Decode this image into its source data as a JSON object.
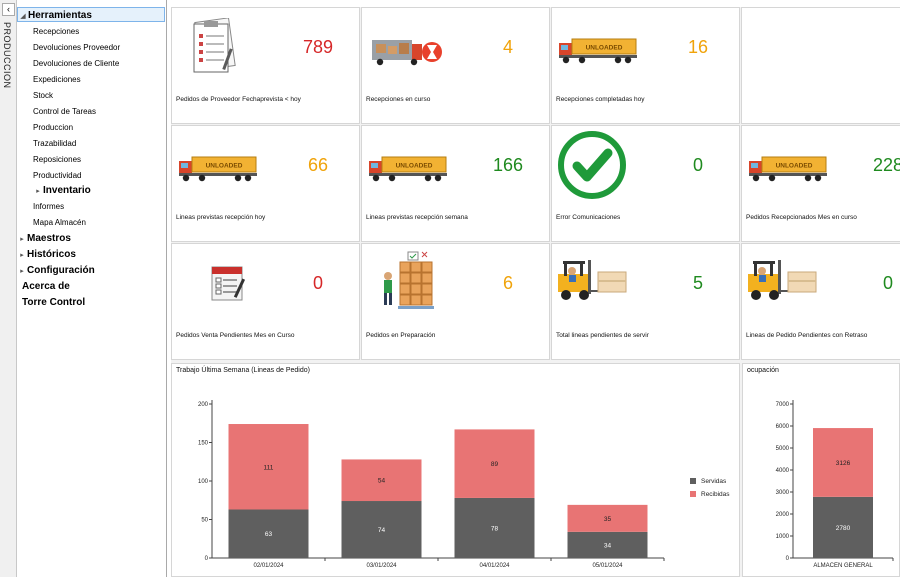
{
  "rail": {
    "collapse": "‹",
    "label": "PRODUCCION"
  },
  "nav": {
    "herramientas": "Herramientas",
    "items": [
      "Recepciones",
      "Devoluciones Proveedor",
      "Devoluciones de Cliente",
      "Expediciones",
      "Stock",
      "Control de Tareas",
      "Produccion",
      "Trazabilidad",
      "Reposiciones",
      "Productividad"
    ],
    "inventario": "Inventario",
    "items2": [
      "Informes",
      "Mapa Almacén"
    ],
    "maestros": "Maestros",
    "historicos": "Históricos",
    "configuracion": "Configuración",
    "acerca": "Acerca de",
    "torre": "Torre Control"
  },
  "colors": {
    "red": "#d62728",
    "orange": "#f0a30a",
    "green": "#1f8a1f",
    "served": "#5f5f5f",
    "received": "#e87474"
  },
  "tiles": [
    {
      "caption": "Pedidos de Proveedor Fechaprevista < hoy",
      "value": "789",
      "color": "red",
      "icon": "clipboard-icon"
    },
    {
      "caption": "Recepciones en curso",
      "value": "4",
      "color": "orange",
      "icon": "truck-unloading-icon"
    },
    {
      "caption": "Recepciones completadas hoy",
      "value": "16",
      "color": "orange",
      "icon": "unloaded-truck-icon"
    },
    {
      "caption": "",
      "value": "",
      "color": "red",
      "icon": ""
    },
    {
      "caption": "Lineas previstas recepción hoy",
      "value": "66",
      "color": "orange",
      "icon": "unloaded-truck-icon"
    },
    {
      "caption": "Lineas previstas recepción semana",
      "value": "166",
      "color": "green",
      "icon": "unloaded-truck-icon"
    },
    {
      "caption": "Error Comunicaciones",
      "value": "0",
      "color": "green",
      "icon": "checkmark-icon"
    },
    {
      "caption": "Pedidos Recepcionados Mes en curso",
      "value": "228",
      "color": "green",
      "icon": "unloaded-truck-icon"
    },
    {
      "caption": "Pedidos Venta Pendientes Mes en Curso",
      "value": "0",
      "color": "red",
      "icon": "order-form-icon"
    },
    {
      "caption": "Pedidos en Preparación",
      "value": "6",
      "color": "orange",
      "icon": "worker-boxes-icon"
    },
    {
      "caption": "Total lineas pendientes de servir",
      "value": "5",
      "color": "green",
      "icon": "forklift-icon"
    },
    {
      "caption": "Lineas de Pedido Pendientes con Retraso",
      "value": "0",
      "color": "green",
      "icon": "forklift-icon"
    }
  ],
  "truck_label": "UNLOADED",
  "chart_data": [
    {
      "type": "bar",
      "title": "Trabajo Última Semana (Lineas de Pedido)",
      "stacked": true,
      "categories": [
        "02/01/2024",
        "03/01/2024",
        "04/01/2024",
        "05/01/2024"
      ],
      "series": [
        {
          "name": "Servidas",
          "values": [
            63,
            74,
            78,
            34
          ]
        },
        {
          "name": "Recibidas",
          "values": [
            111,
            54,
            89,
            35
          ]
        }
      ],
      "ylim": [
        0,
        200
      ],
      "yticks": [
        0,
        50,
        100,
        150,
        200
      ],
      "legend": "right"
    },
    {
      "type": "bar",
      "title": "ocupación",
      "stacked": true,
      "categories": [
        "ALMACEN GENERAL"
      ],
      "series": [
        {
          "name": "Servidas",
          "values": [
            2780
          ]
        },
        {
          "name": "Recibidas",
          "values": [
            3126
          ]
        }
      ],
      "ylim": [
        0,
        7000
      ],
      "yticks": [
        0,
        1000,
        2000,
        3000,
        4000,
        5000,
        6000,
        7000
      ]
    }
  ]
}
